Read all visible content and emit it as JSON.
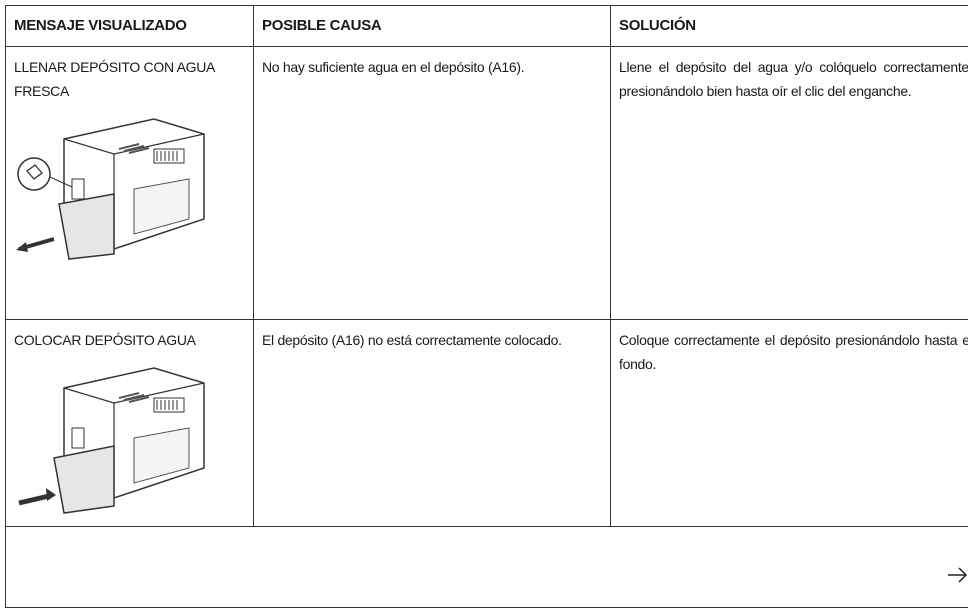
{
  "table": {
    "header": [
      "MENSAJE VISUALIZADO",
      "POSIBLE CAUSA",
      "SOLUCIÓN"
    ],
    "rows": [
      [
        "LLENAR DEPÓSITO CON AGUA FRESCA",
        "No hay suficiente agua en el depósito (A16).",
        "Llene el depósito del agua y/o colóquelo correctamente, presionándolo bien hasta oír el clic del enganche."
      ],
      [
        "COLOCAR DEPÓSITO AGUA",
        "El depósito (A16) no está correctamente colocado.",
        "Coloque correctamente el depósito presionándolo hasta el fondo."
      ]
    ]
  }
}
